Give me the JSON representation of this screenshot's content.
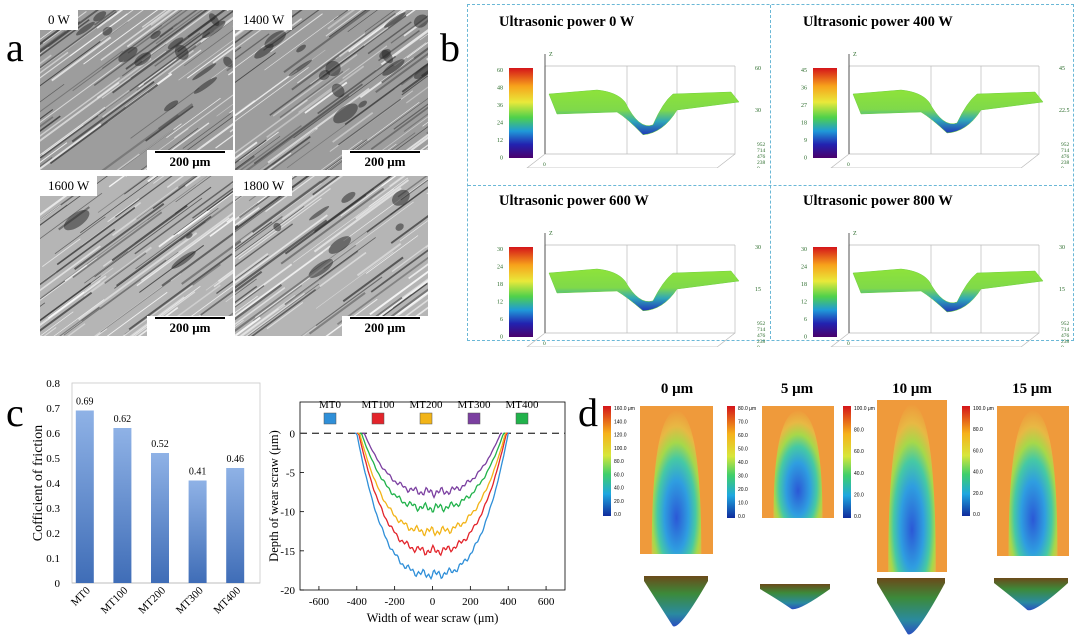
{
  "panel_letters": {
    "a": "a",
    "b": "b",
    "c": "c",
    "d": "d"
  },
  "panel_a": {
    "images": [
      {
        "label": "0 W",
        "scale": "200 μm"
      },
      {
        "label": "1400 W",
        "scale": "200 μm"
      },
      {
        "label": "1600 W",
        "scale": "200 μm"
      },
      {
        "label": "1800 W",
        "scale": "200 μm"
      }
    ]
  },
  "panel_b": {
    "surfaces": [
      {
        "title": "Ultrasonic power 0 W",
        "cb_ticks": [
          "60",
          "48",
          "36",
          "24",
          "12",
          "0"
        ],
        "z_right": [
          "60",
          "30"
        ],
        "x_ticks": [
          "0",
          "658",
          "1317",
          "1975",
          "2634"
        ],
        "y_ticks": [
          "952",
          "714",
          "476",
          "238",
          "0"
        ]
      },
      {
        "title": "Ultrasonic power 400 W",
        "cb_ticks": [
          "45",
          "36",
          "27",
          "18",
          "9",
          "0"
        ],
        "z_right": [
          "45",
          "22.5"
        ],
        "x_ticks": [
          "0",
          "658",
          "1316",
          "1974",
          "2632"
        ],
        "y_ticks": [
          "952",
          "714",
          "476",
          "238",
          "0"
        ]
      },
      {
        "title": "Ultrasonic power 600 W",
        "cb_ticks": [
          "30",
          "24",
          "18",
          "12",
          "6",
          "0"
        ],
        "z_right": [
          "30",
          "15"
        ],
        "x_ticks": [
          "0",
          "658",
          "1315",
          "1973",
          "2631"
        ],
        "y_ticks": [
          "952",
          "714",
          "476",
          "238",
          "0"
        ]
      },
      {
        "title": "Ultrasonic power 800 W",
        "cb_ticks": [
          "30",
          "24",
          "18",
          "12",
          "6",
          "0"
        ],
        "z_right": [
          "30",
          "15"
        ],
        "x_ticks": [
          "0",
          "657",
          "1315",
          "1972",
          "2629"
        ],
        "y_ticks": [
          "952",
          "714",
          "476",
          "238",
          "0"
        ]
      }
    ],
    "axis_z": "Z",
    "axis_x": "X"
  },
  "chart_data": [
    {
      "type": "bar",
      "categories": [
        "MT0",
        "MT100",
        "MT200",
        "MT300",
        "MT400"
      ],
      "values": [
        0.69,
        0.62,
        0.52,
        0.41,
        0.46
      ],
      "value_labels": [
        "0.69",
        "0.62",
        "0.52",
        "0.41",
        "0.46"
      ],
      "ylabel": "Cofficient of friction",
      "xlabel": "",
      "ylim": [
        0,
        0.8
      ],
      "yticks": [
        "0",
        "0.1",
        "0.2",
        "0.3",
        "0.4",
        "0.5",
        "0.6",
        "0.7",
        "0.8"
      ],
      "bar_color": "#3f6db7"
    },
    {
      "type": "line",
      "xlabel": "Width of wear scraw (μm)",
      "ylabel": "Depth of wear scraw (μm)",
      "xlim": [
        -700,
        700
      ],
      "ylim": [
        -20,
        4
      ],
      "xticks": [
        "-600",
        "-400",
        "-200",
        "0",
        "200",
        "400",
        "600"
      ],
      "yticks": [
        "0",
        "-5",
        "-10",
        "-15",
        "-20"
      ],
      "series": [
        {
          "name": "MT0",
          "color": "#2f8fd8",
          "halfwidth": 400,
          "depth": 18.0
        },
        {
          "name": "MT100",
          "color": "#e3242b",
          "halfwidth": 390,
          "depth": 15.0
        },
        {
          "name": "MT200",
          "color": "#f2b418",
          "halfwidth": 385,
          "depth": 12.5
        },
        {
          "name": "MT300",
          "color": "#7b3fa0",
          "halfwidth": 360,
          "depth": 7.5
        },
        {
          "name": "MT400",
          "color": "#21b24b",
          "halfwidth": 375,
          "depth": 9.5
        }
      ]
    }
  ],
  "panel_d": {
    "columns": [
      {
        "title": "0 μm",
        "cb_ticks": [
          "160.0 μm",
          "140.0",
          "120.0",
          "100.0",
          "80.0",
          "60.0",
          "40.0",
          "20.0",
          "0.0"
        ]
      },
      {
        "title": "5 μm",
        "cb_ticks": [
          "80.0 μm",
          "70.0",
          "60.0",
          "50.0",
          "40.0",
          "30.0",
          "20.0",
          "10.0",
          "0.0"
        ]
      },
      {
        "title": "10 μm",
        "cb_ticks": [
          "100.0 μm",
          "80.0",
          "60.0",
          "40.0",
          "20.0",
          "0.0"
        ]
      },
      {
        "title": "15 μm",
        "cb_ticks": [
          "100.0 μm",
          "80.0",
          "60.0",
          "40.0",
          "20.0",
          "0.0"
        ]
      }
    ]
  }
}
